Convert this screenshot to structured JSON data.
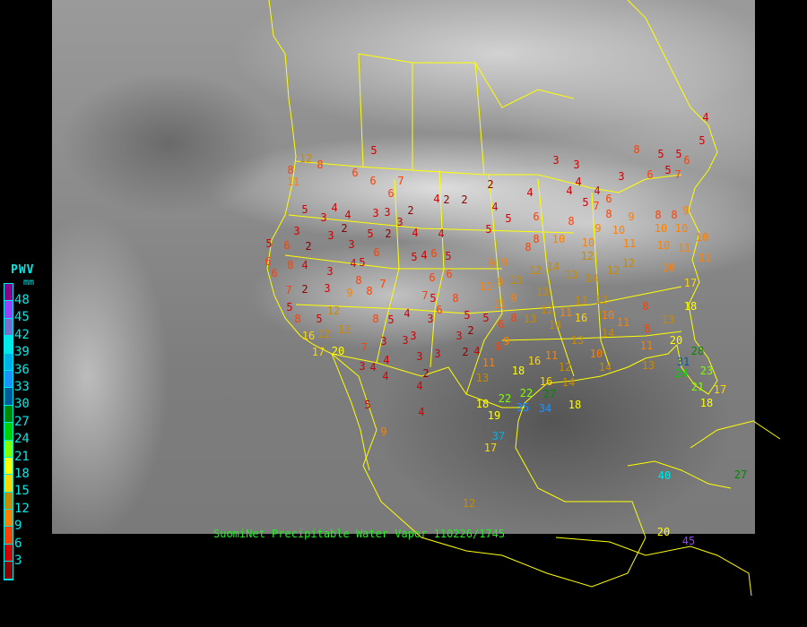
{
  "caption": "SuomiNet Precipitable Water Vapor 110226/1745",
  "legend": {
    "title": "PWV",
    "unit": "mm",
    "ticks": [
      "48",
      "45",
      "42",
      "39",
      "36",
      "33",
      "30",
      "27",
      "24",
      "21",
      "18",
      "15",
      "12",
      "9",
      "6",
      "3"
    ],
    "colors": [
      "#8b008b",
      "#9a40ff",
      "#7a6fd0",
      "#00e8e8",
      "#00b0e8",
      "#1e90ff",
      "#005a9a",
      "#008800",
      "#00d000",
      "#80ff00",
      "#ffff00",
      "#ffd700",
      "#c88a00",
      "#ff8000",
      "#ff4000",
      "#d40000",
      "#8b0000"
    ]
  },
  "map": {
    "border_color": "#ffff00",
    "background": "grayscale infrared satellite image"
  },
  "stations": [
    5,
    6,
    7,
    6,
    6,
    8,
    4,
    2,
    2,
    2,
    4,
    5,
    4,
    3,
    4,
    3,
    3,
    2,
    3,
    2,
    4,
    4,
    5,
    5,
    3,
    6,
    2,
    3,
    2,
    3,
    5,
    5,
    6,
    3,
    4,
    4,
    5,
    6,
    5,
    4,
    6,
    5,
    5,
    6,
    5,
    6,
    8,
    7,
    6,
    2,
    3,
    9,
    8,
    8,
    7,
    5,
    12,
    8,
    5,
    4,
    3,
    3,
    3,
    3,
    3,
    7,
    4,
    3,
    4,
    2,
    3,
    4,
    4,
    3,
    2,
    4,
    2,
    11,
    13,
    5,
    6,
    6,
    9,
    9,
    9,
    9,
    11,
    10,
    9,
    8,
    13,
    3,
    3,
    4,
    3,
    4,
    4,
    4,
    5,
    7,
    6,
    8,
    9,
    8,
    6,
    10,
    10,
    9,
    11,
    12,
    12,
    10,
    8,
    8,
    8,
    5,
    5,
    5,
    6,
    7,
    6,
    8,
    8,
    10,
    10,
    9,
    10,
    10,
    11,
    10,
    11,
    14,
    14,
    12,
    12,
    13,
    13,
    13,
    12,
    13,
    12,
    11,
    14,
    16,
    13,
    14,
    10,
    11,
    8,
    8,
    11,
    13,
    20,
    31,
    10,
    11,
    12,
    14,
    16,
    16,
    18,
    22,
    27,
    18,
    34,
    35,
    22,
    19,
    18,
    14,
    13,
    24,
    23,
    21,
    28,
    18,
    17,
    17,
    18,
    4,
    5,
    12,
    8,
    11,
    8,
    6,
    7,
    5,
    8,
    17,
    16,
    20,
    13,
    12,
    5,
    9,
    4,
    37,
    17,
    12,
    40,
    45,
    27,
    20
  ]
}
